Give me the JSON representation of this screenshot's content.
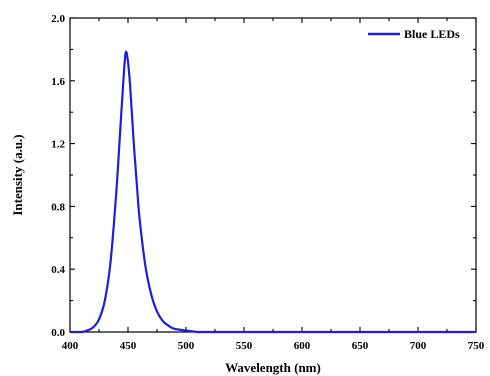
{
  "chart_data": {
    "type": "line",
    "title": "",
    "xlabel": "Wavelength (nm)",
    "ylabel": "Intensity (a.u.)",
    "xlim": [
      400,
      750
    ],
    "ylim": [
      0.0,
      2.0
    ],
    "x_ticks": [
      400,
      450,
      500,
      550,
      600,
      650,
      700,
      750
    ],
    "y_ticks": [
      0.0,
      0.4,
      0.8,
      1.2,
      1.6,
      2.0
    ],
    "x_tick_labels": [
      "400",
      "450",
      "500",
      "550",
      "600",
      "650",
      "700",
      "750"
    ],
    "y_tick_labels": [
      "0.0",
      "0.4",
      "0.8",
      "1.2",
      "1.6",
      "2.0"
    ],
    "legend": {
      "position": "top-right"
    },
    "series": [
      {
        "name": "Blue LEDs",
        "color": "#1f1fd6",
        "x": [
          400,
          410,
          415,
          420,
          425,
          430,
          435,
          440,
          443,
          446,
          448,
          450,
          452,
          455,
          458,
          460,
          465,
          470,
          475,
          480,
          485,
          490,
          500,
          510,
          520,
          550,
          600,
          650,
          700,
          750
        ],
        "y": [
          0.0,
          0.0,
          0.01,
          0.03,
          0.08,
          0.2,
          0.45,
          0.9,
          1.25,
          1.6,
          1.78,
          1.72,
          1.55,
          1.2,
          0.9,
          0.72,
          0.42,
          0.24,
          0.13,
          0.07,
          0.04,
          0.02,
          0.01,
          0.0,
          0.0,
          0.0,
          0.0,
          0.0,
          0.0,
          0.0
        ]
      }
    ]
  }
}
